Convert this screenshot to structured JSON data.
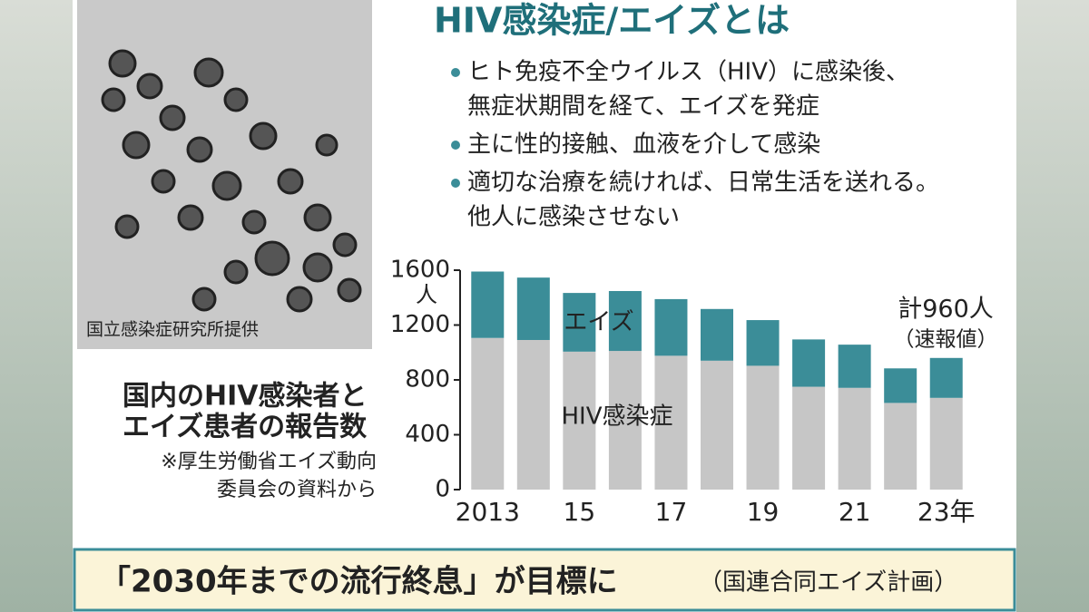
{
  "header": {
    "title": "HIV感染症/エイズとは"
  },
  "bullets": [
    [
      "ヒト免疫不全ウイルス（HIV）に感染後、",
      "無症状期間を経て、エイズを発症"
    ],
    [
      "主に性的接触、血液を介して感染"
    ],
    [
      "適切な治療を続ければ、日常生活を送れる。",
      "他人に感染させない"
    ]
  ],
  "photo_credit": "国立感染症研究所提供",
  "banner": {
    "main": "「2030年までの流行終息」が目標に",
    "source": "（国連合同エイズ計画）"
  },
  "chart_data": {
    "type": "stacked_bar",
    "title": [
      "国内のHIV感染者と",
      "エイズ患者の報告数"
    ],
    "note": [
      "※厚生労働省エイズ動向",
      "委員会の資料から"
    ],
    "y_unit": "人",
    "categories": [
      "2013",
      null,
      "15",
      null,
      "17",
      null,
      "19",
      null,
      "21",
      null,
      "23年"
    ],
    "series": [
      {
        "name": "HIV感染症",
        "color": "#c6c6c6",
        "values": [
          1106,
          1091,
          1006,
          1011,
          976,
          940,
          903,
          750,
          742,
          632,
          669
        ]
      },
      {
        "name": "エイズ",
        "color": "#3b8d98",
        "values": [
          484,
          455,
          428,
          437,
          413,
          377,
          333,
          345,
          315,
          252,
          291
        ]
      }
    ],
    "annotations": [
      "計960人",
      "（速報値）"
    ],
    "ylim": [
      0,
      1600
    ],
    "yticks": [
      0,
      400,
      800,
      1200,
      1600
    ]
  }
}
